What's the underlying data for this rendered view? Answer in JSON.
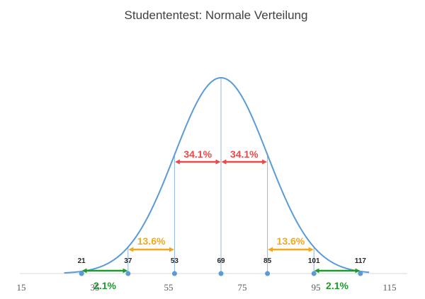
{
  "chart_data": {
    "type": "line",
    "title": "Studententest: Normale Verteilung",
    "xlabel": "",
    "ylabel": "",
    "xlim": [
      15,
      120
    ],
    "x_ticks": [
      15,
      35,
      55,
      75,
      95,
      115
    ],
    "distribution": {
      "mean": 69,
      "sd": 16
    },
    "marker_points": [
      21,
      37,
      53,
      69,
      85,
      101,
      117
    ],
    "vertical_lines": [
      37,
      53,
      69,
      85,
      101
    ],
    "annotations": [
      {
        "text": "34.1%",
        "from": 53,
        "to": 69,
        "level": "high",
        "color": "#e84a4a"
      },
      {
        "text": "34.1%",
        "from": 69,
        "to": 85,
        "level": "high",
        "color": "#e84a4a"
      },
      {
        "text": "13.6%",
        "from": 37,
        "to": 53,
        "level": "mid",
        "color": "#f0a81c"
      },
      {
        "text": "13.6%",
        "from": 85,
        "to": 101,
        "level": "mid",
        "color": "#f0a81c"
      },
      {
        "text": "2.1%",
        "from": 21,
        "to": 37,
        "level": "low",
        "color": "#1e9a2e"
      },
      {
        "text": "2.1%",
        "from": 101,
        "to": 117,
        "level": "low",
        "color": "#1e9a2e"
      }
    ],
    "colors": {
      "curve": "#5b9bd5",
      "axis": "#d9d9d9",
      "marker": "#5b9bd5",
      "guide": "#8fb4dc"
    },
    "grid": false,
    "legend": "none"
  }
}
